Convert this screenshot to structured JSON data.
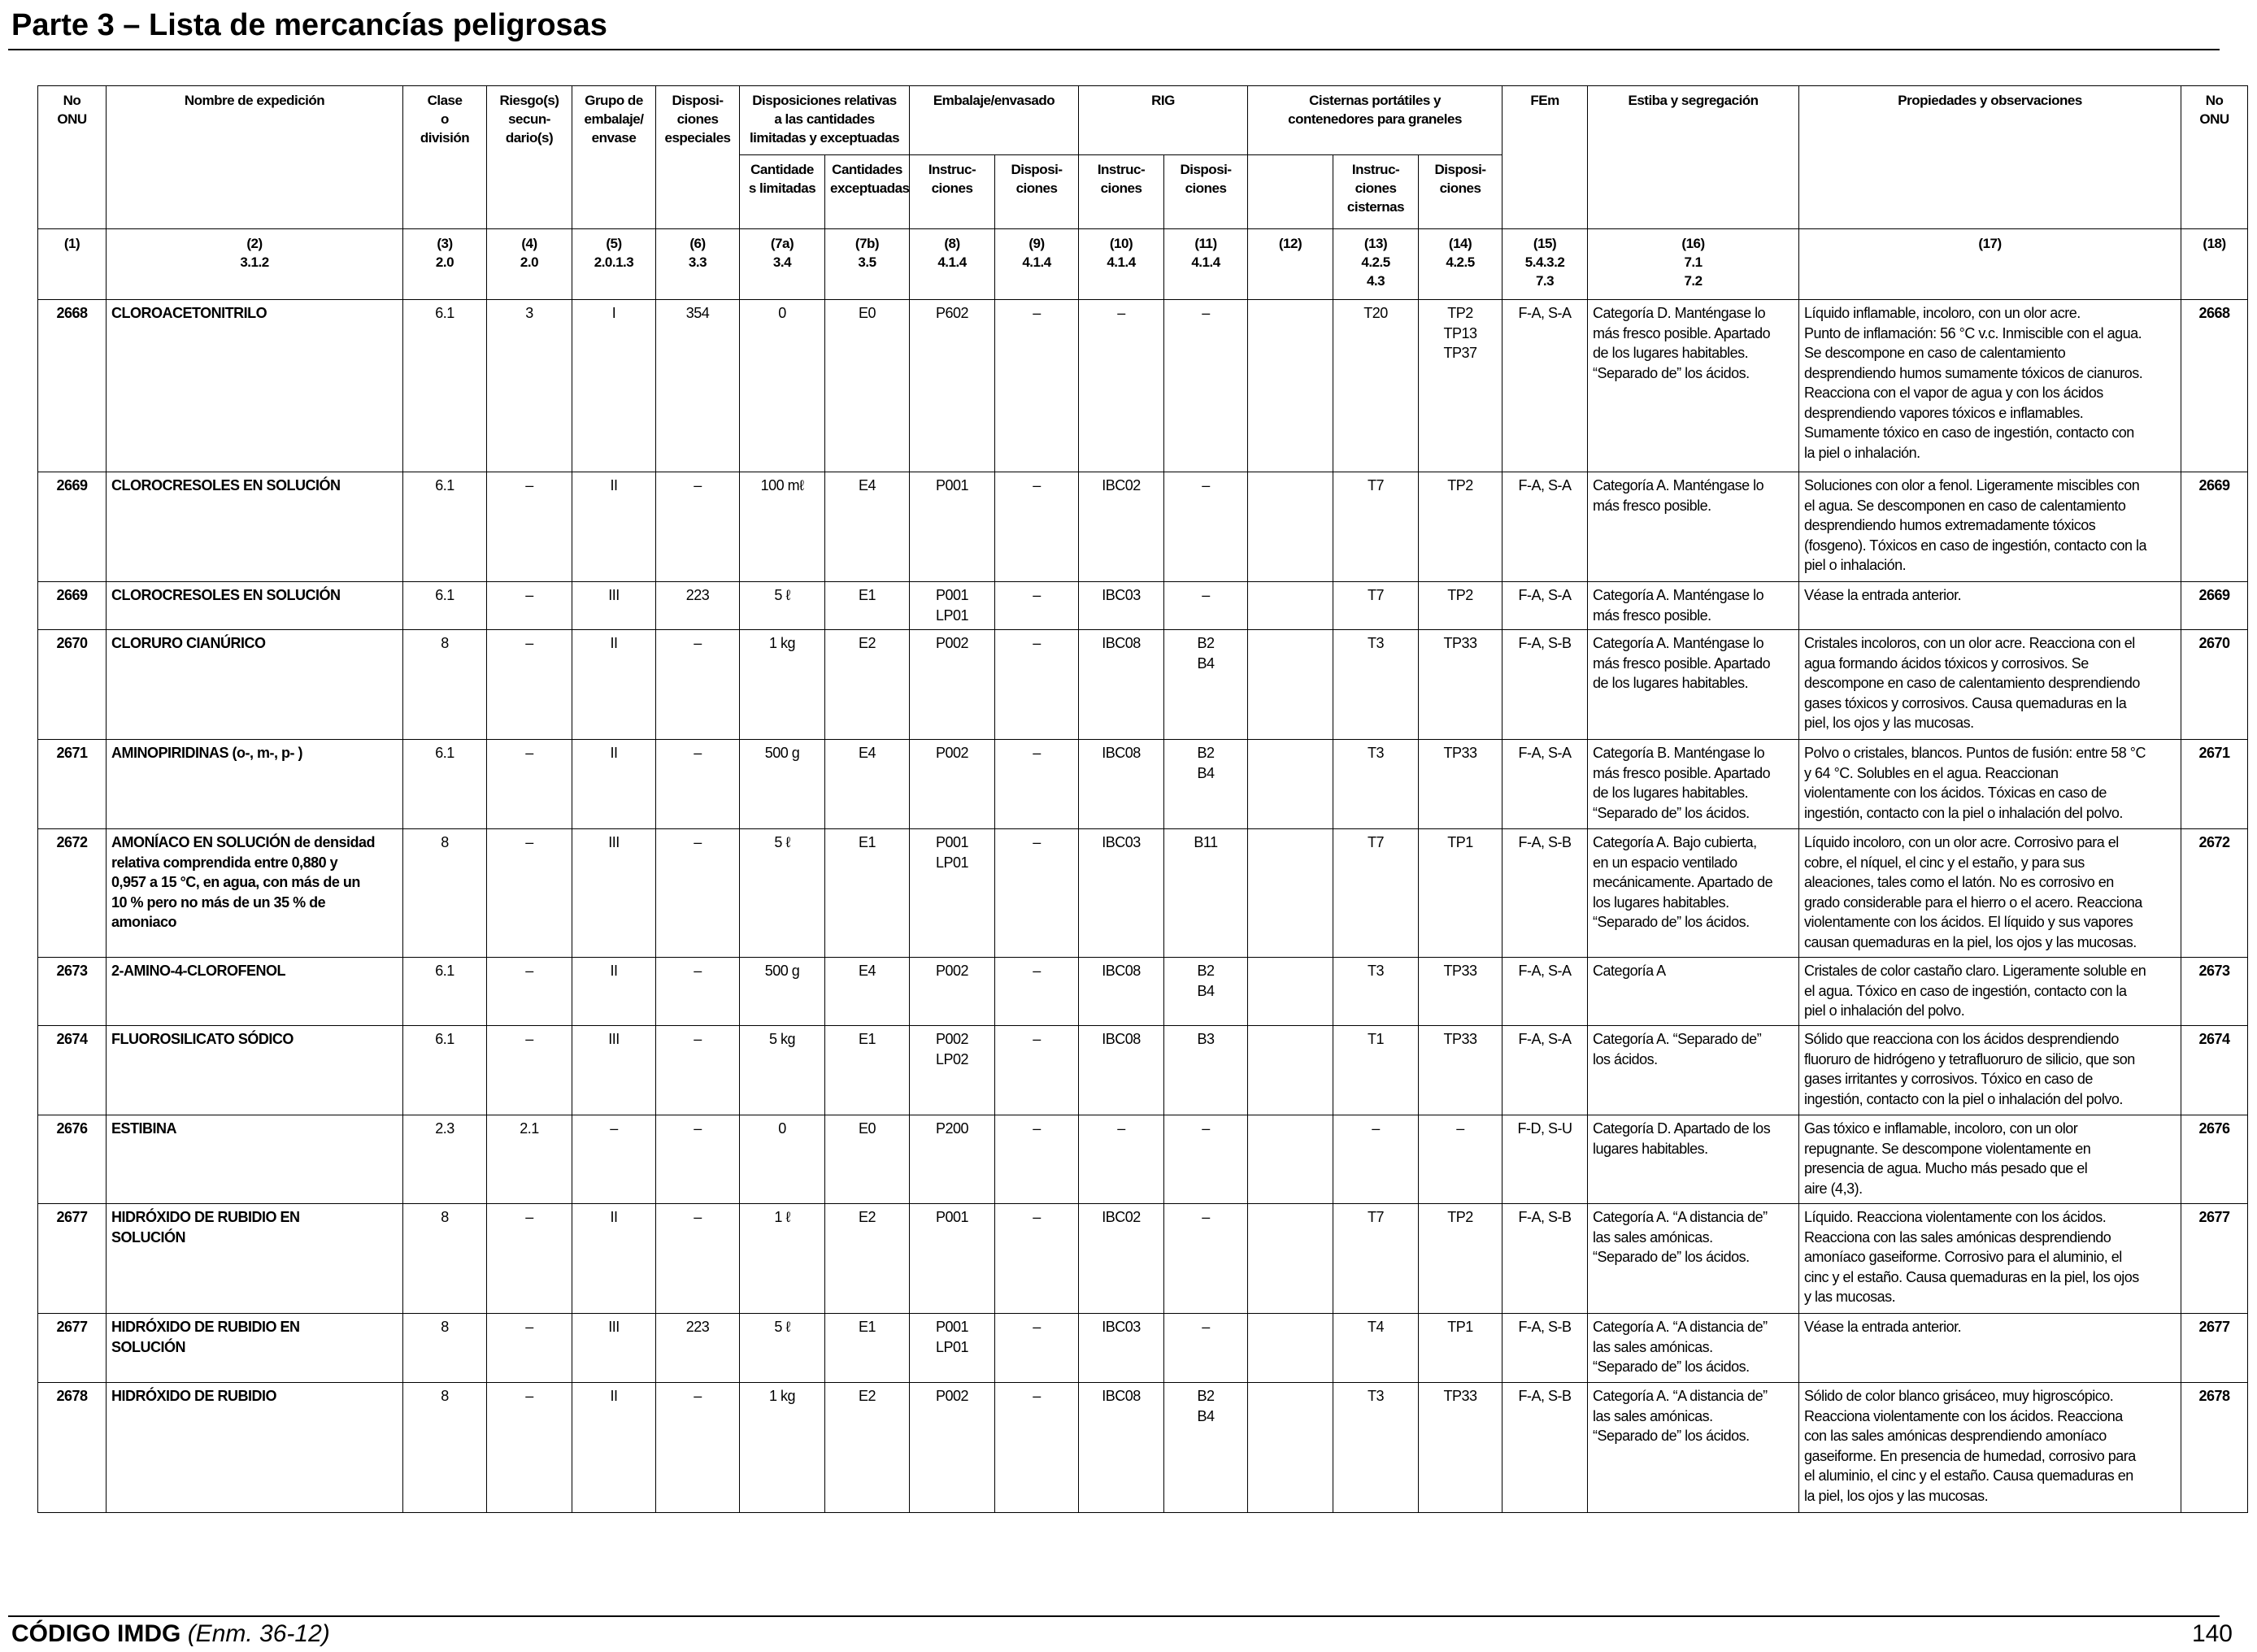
{
  "header": {
    "title": "Parte 3 – Lista de mercancías peligrosas"
  },
  "table": {
    "head": [
      "No\nONU",
      "Nombre de expedición",
      "Clase\no\ndivisión",
      "Riesgo(s)\nsecun-\ndario(s)",
      "Grupo de\nembalaje/\nenvase",
      "Disposi-\nciones\nespeciales",
      "Disposiciones relativas\na las cantidades\nlimitadas y exceptuadas",
      "Embalaje/envasado",
      "RIG",
      "Cisternas portátiles y\ncontenedores para graneles",
      "FEm",
      "Estiba y segregación",
      "Propiedades y observaciones",
      "No\nONU"
    ],
    "subhead": [
      "Cantidade\ns limitadas",
      "Cantidades\nexceptuadas",
      "Instruc-\nciones",
      "Disposi-\nciones",
      "Instruc-\nciones",
      "Disposi-\nciones",
      "Instruc-\nciones\ncisternas",
      "Disposi-\nciones"
    ],
    "col_numbers": [
      "(1)",
      "(2)\n3.1.2",
      "(3)\n2.0",
      "(4)\n2.0",
      "(5)\n2.0.1.3",
      "(6)\n3.3",
      "(7a)\n3.4",
      "(7b)\n3.5",
      "(8)\n4.1.4",
      "(9)\n4.1.4",
      "(10)\n4.1.4",
      "(11)\n4.1.4",
      "(12)",
      "(13)\n4.2.5\n4.3",
      "(14)\n4.2.5",
      "(15)\n5.4.3.2\n7.3",
      "(16)\n7.1\n7.2",
      "(17)",
      "(18)"
    ],
    "rows": [
      [
        "2668",
        "CLOROACETONITRILO",
        "6.1",
        "3",
        "I",
        "354",
        "0",
        "E0",
        "P602",
        "–",
        "–",
        "–",
        "T20",
        "TP2\nTP13\nTP37",
        "F-A, S-A",
        "Categoría D. Manténgase lo\nmás fresco posible. Apartado\nde los lugares habitables.\n“Separado de” los ácidos.",
        "Líquido inflamable, incoloro, con un olor acre.\nPunto de inflamación: 56 °C v.c. Inmiscible con el agua.\nSe descompone en caso de calentamiento\ndesprendiendo humos sumamente tóxicos de cianuros.\nReacciona con el vapor de agua y con los ácidos\ndesprendiendo vapores tóxicos e inflamables.\nSumamente tóxico en caso de ingestión, contacto con\nla piel o inhalación.",
        "2668"
      ],
      [
        "2669",
        "CLOROCRESOLES EN SOLUCIÓN",
        "6.1",
        "–",
        "II",
        "–",
        "100 mℓ",
        "E4",
        "P001",
        "–",
        "IBC02",
        "–",
        "T7",
        "TP2",
        "F-A, S-A",
        "Categoría A. Manténgase lo\nmás fresco posible.",
        "Soluciones con olor a fenol. Ligeramente miscibles con\nel agua. Se descomponen en caso de calentamiento\ndesprendiendo humos extremadamente tóxicos\n(fosgeno). Tóxicos en caso de ingestión, contacto con la\npiel o inhalación.",
        "2669"
      ],
      [
        "2669",
        "CLOROCRESOLES EN SOLUCIÓN",
        "6.1",
        "–",
        "III",
        "223",
        "5 ℓ",
        "E1",
        "P001\nLP01",
        "–",
        "IBC03",
        "–",
        "T7",
        "TP2",
        "F-A, S-A",
        "Categoría A. Manténgase lo\nmás fresco posible.",
        "Véase la entrada anterior.",
        "2669"
      ],
      [
        "2670",
        "CLORURO CIANÚRICO",
        "8",
        "–",
        "II",
        "–",
        "1 kg",
        "E2",
        "P002",
        "–",
        "IBC08",
        "B2\nB4",
        "T3",
        "TP33",
        "F-A, S-B",
        "Categoría A. Manténgase lo\nmás fresco posible. Apartado\nde los lugares habitables.",
        "Cristales incoloros, con un olor acre. Reacciona con el\nagua formando ácidos tóxicos y corrosivos. Se\ndescompone en caso de calentamiento desprendiendo\ngases tóxicos y corrosivos. Causa quemaduras en la\npiel, los ojos y las mucosas.",
        "2670"
      ],
      [
        "2671",
        "AMINOPIRIDINAS (o-, m-, p- )",
        "6.1",
        "–",
        "II",
        "–",
        "500 g",
        "E4",
        "P002",
        "–",
        "IBC08",
        "B2\nB4",
        "T3",
        "TP33",
        "F-A, S-A",
        "Categoría B. Manténgase lo\nmás fresco posible. Apartado\nde los lugares habitables.\n“Separado de” los ácidos.",
        "Polvo o cristales, blancos. Puntos de fusión: entre 58 °C\ny 64 °C. Solubles en el agua. Reaccionan\nviolentamente con los ácidos. Tóxicas en caso de\ningestión, contacto con la piel o inhalación del polvo.",
        "2671"
      ],
      [
        "2672",
        "AMONÍACO EN SOLUCIÓN de densidad\nrelativa comprendida entre 0,880 y\n0,957 a 15 °C, en agua, con más de un\n10 % pero no más de un 35 % de\namoniaco",
        "8",
        "–",
        "III",
        "–",
        "5 ℓ",
        "E1",
        "P001\nLP01",
        "–",
        "IBC03",
        "B11",
        "T7",
        "TP1",
        "F-A, S-B",
        "Categoría A. Bajo cubierta,\nen un espacio ventilado\nmecánicamente. Apartado de\nlos lugares habitables.\n“Separado de” los ácidos.",
        "Líquido incoloro, con un olor acre. Corrosivo para el\ncobre, el níquel, el cinc y el estaño, y para sus\naleaciones, tales como el latón. No es corrosivo en\ngrado considerable para el hierro o el acero. Reacciona\nviolentamente con los ácidos. El líquido y sus vapores\ncausan quemaduras en la piel, los ojos y las mucosas.",
        "2672"
      ],
      [
        "2673",
        "2-AMINO-4-CLOROFENOL",
        "6.1",
        "–",
        "II",
        "–",
        "500 g",
        "E4",
        "P002",
        "–",
        "IBC08",
        "B2\nB4",
        "T3",
        "TP33",
        "F-A, S-A",
        "Categoría A",
        "Cristales de color castaño claro. Ligeramente soluble en\nel agua. Tóxico en caso de ingestión, contacto con la\npiel o inhalación del polvo.",
        "2673"
      ],
      [
        "2674",
        "FLUOROSILICATO SÓDICO",
        "6.1",
        "–",
        "III",
        "–",
        "5 kg",
        "E1",
        "P002\nLP02",
        "–",
        "IBC08",
        "B3",
        "T1",
        "TP33",
        "F-A, S-A",
        "Categoría A. “Separado de”\nlos ácidos.",
        "Sólido que reacciona con los ácidos desprendiendo\nfluoruro de hidrógeno y tetrafluoruro de silicio, que son\ngases irritantes y corrosivos. Tóxico en caso de\ningestión, contacto con la piel o inhalación del polvo.",
        "2674"
      ],
      [
        "2676",
        "ESTIBINA",
        "2.3",
        "2.1",
        "–",
        "–",
        "0",
        "E0",
        "P200",
        "–",
        "–",
        "–",
        "–",
        "–",
        "F-D, S-U",
        "Categoría D. Apartado de los\nlugares habitables.",
        "Gas tóxico e inflamable, incoloro, con un olor\nrepugnante. Se descompone violentamente en\npresencia de agua. Mucho más pesado que el\naire (4,3).",
        "2676"
      ],
      [
        "2677",
        "HIDRÓXIDO DE RUBIDIO EN\nSOLUCIÓN",
        "8",
        "–",
        "II",
        "–",
        "1 ℓ",
        "E2",
        "P001",
        "–",
        "IBC02",
        "–",
        "T7",
        "TP2",
        "F-A, S-B",
        "Categoría A. “A distancia de”\nlas sales amónicas.\n“Separado de” los ácidos.",
        "Líquido. Reacciona violentamente con los ácidos.\nReacciona con las sales amónicas desprendiendo\namoníaco gaseiforme. Corrosivo para el aluminio, el\ncinc y el estaño. Causa quemaduras en la piel, los ojos\ny las mucosas.",
        "2677"
      ],
      [
        "2677",
        "HIDRÓXIDO DE RUBIDIO EN\nSOLUCIÓN",
        "8",
        "–",
        "III",
        "223",
        "5 ℓ",
        "E1",
        "P001\nLP01",
        "–",
        "IBC03",
        "–",
        "T4",
        "TP1",
        "F-A, S-B",
        "Categoría A. “A distancia de”\nlas sales amónicas.\n“Separado de” los ácidos.",
        "Véase la entrada anterior.",
        "2677"
      ],
      [
        "2678",
        "HIDRÓXIDO DE RUBIDIO",
        "8",
        "–",
        "II",
        "–",
        "1 kg",
        "E2",
        "P002",
        "–",
        "IBC08",
        "B2\nB4",
        "T3",
        "TP33",
        "F-A, S-B",
        "Categoría A. “A distancia de”\nlas sales amónicas.\n“Separado de” los ácidos.",
        "Sólido de color blanco grisáceo, muy higroscópico.\nReacciona violentamente con los ácidos. Reacciona\ncon las sales amónicas desprendiendo amoníaco\ngaseiforme. En presencia de humedad, corrosivo para\nel aluminio, el cinc y el estaño.  Causa quemaduras en\nla piel, los ojos y las mucosas.",
        "2678"
      ]
    ]
  },
  "footer": {
    "code": "CÓDIGO IMDG",
    "amendment": "(Enm. 36-12)",
    "page": "140"
  }
}
